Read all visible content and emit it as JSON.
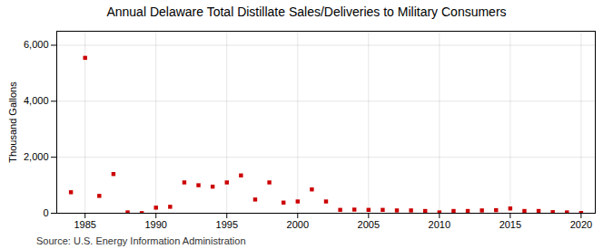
{
  "chart_data": {
    "type": "scatter",
    "title": "Annual Delaware Total Distillate Sales/Deliveries to Military Consumers",
    "ylabel": "Thousand Gallons",
    "annotation": "Source: U.S. Energy Information Administration",
    "x": [
      1984,
      1985,
      1986,
      1987,
      1988,
      1989,
      1990,
      1991,
      1992,
      1993,
      1994,
      1995,
      1996,
      1997,
      1998,
      1999,
      2000,
      2001,
      2002,
      2003,
      2004,
      2005,
      2006,
      2007,
      2008,
      2009,
      2010,
      2011,
      2012,
      2013,
      2014,
      2015,
      2016,
      2017,
      2018,
      2019,
      2020
    ],
    "values": [
      750,
      5550,
      620,
      1400,
      30,
      5,
      200,
      230,
      1100,
      1000,
      950,
      1100,
      1350,
      490,
      1100,
      380,
      420,
      850,
      420,
      120,
      130,
      120,
      120,
      100,
      100,
      80,
      30,
      80,
      80,
      100,
      110,
      170,
      80,
      80,
      40,
      30,
      10
    ],
    "color": "#cc0000",
    "marker": "square",
    "xlim": [
      1983,
      2021
    ],
    "xticks": [
      1985,
      1990,
      1995,
      2000,
      2005,
      2010,
      2015,
      2020
    ],
    "ylim": [
      0,
      6500
    ],
    "yticks": [
      0,
      {
        "value": 2000,
        "label": "2,000"
      },
      {
        "value": 4000,
        "label": "4,000"
      },
      {
        "value": 6000,
        "label": "6,000"
      }
    ],
    "grid": true
  }
}
